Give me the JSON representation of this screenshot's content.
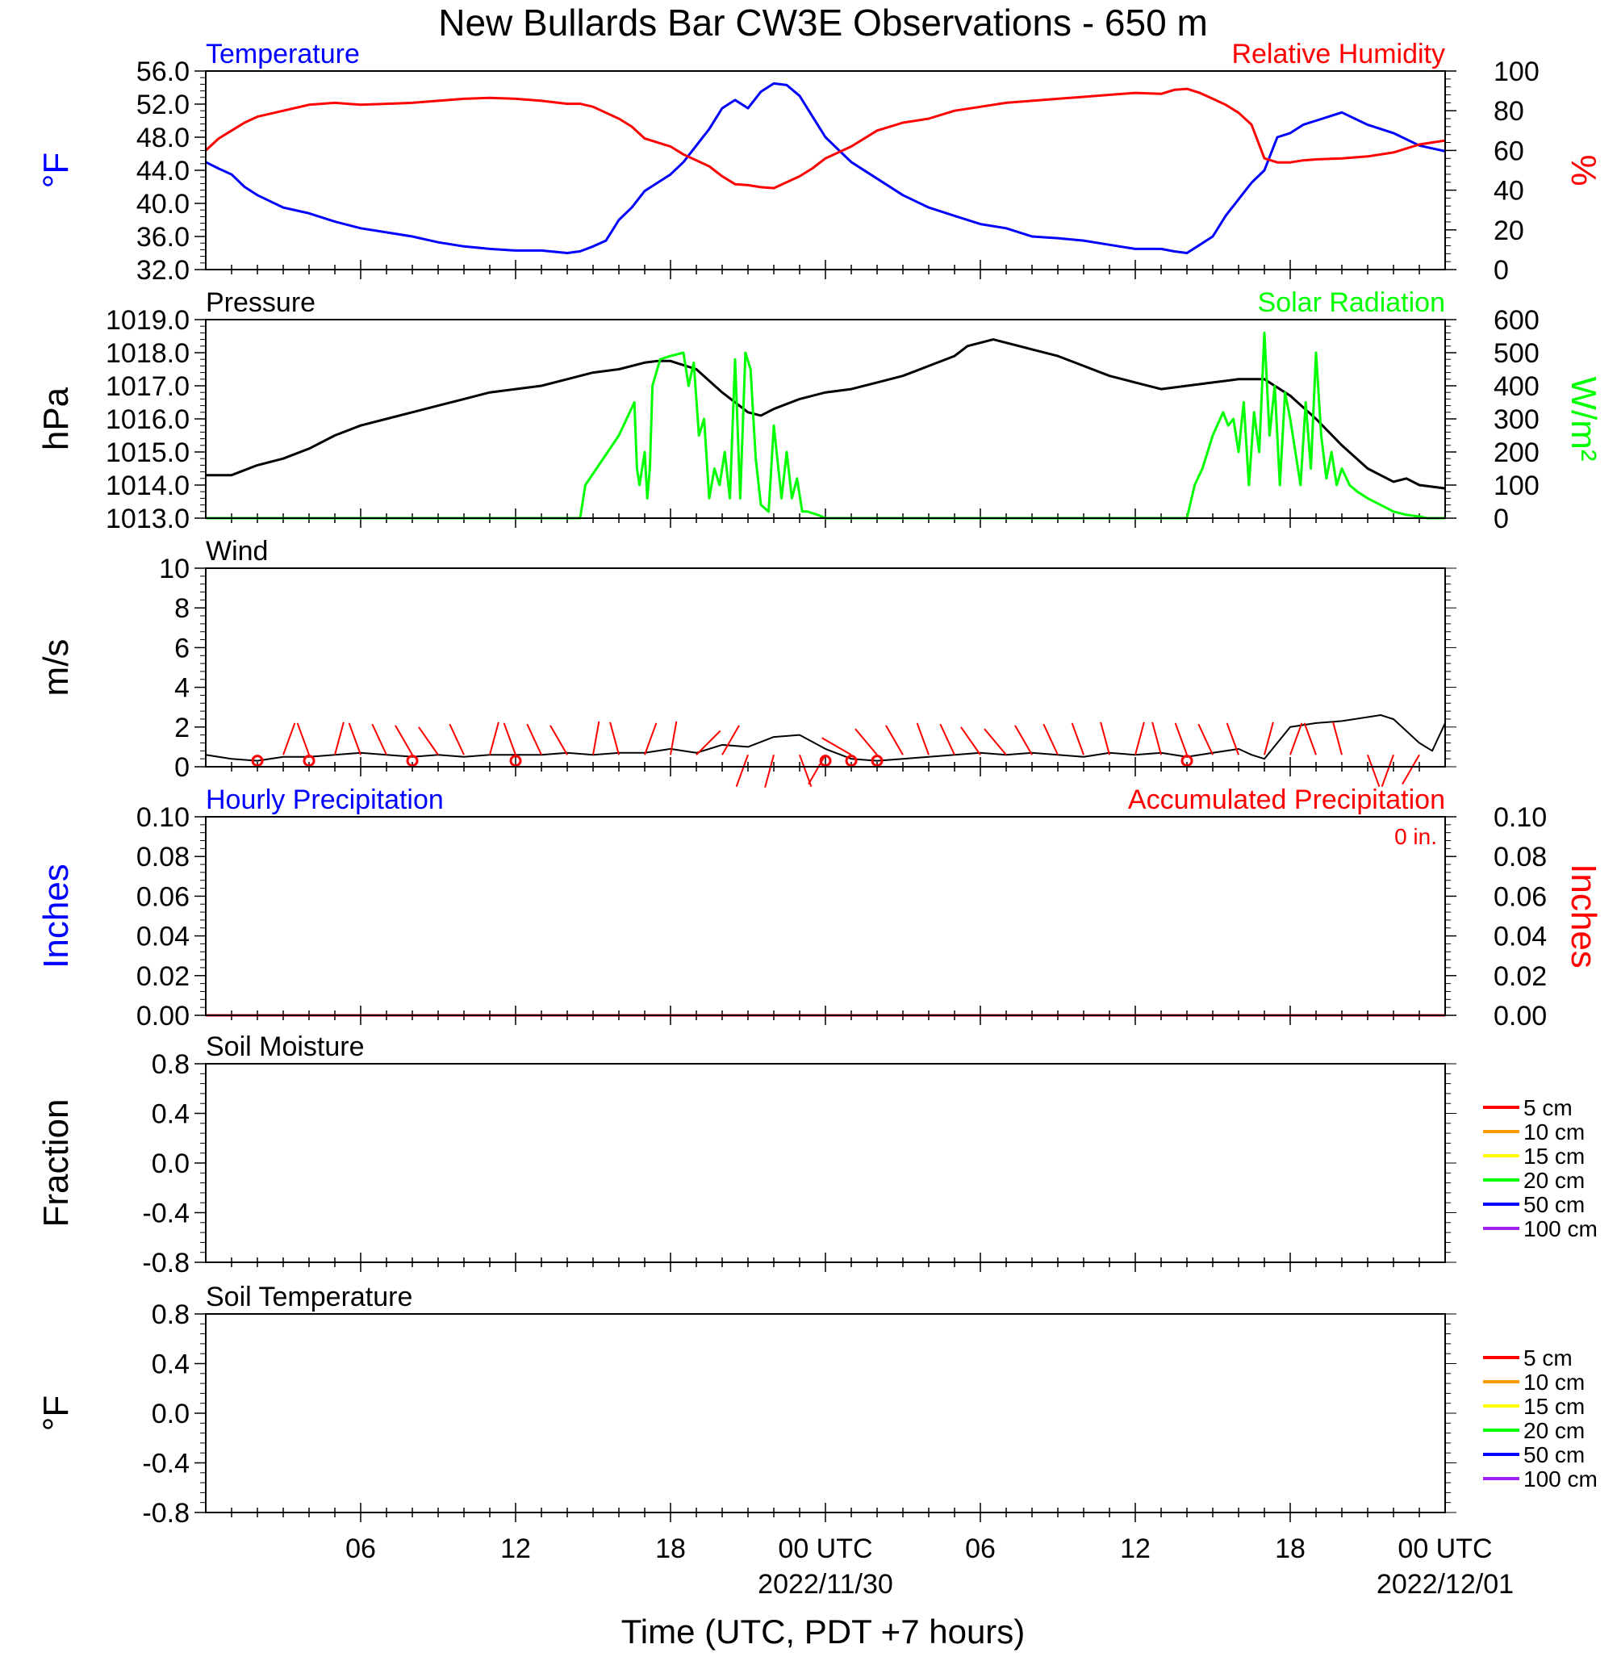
{
  "figure": {
    "title": "New Bullards Bar CW3E Observations - 650 m",
    "xlabel": "Time (UTC, PDT +7 hours)",
    "x_ticks": [
      "06",
      "12",
      "18",
      "00 UTC",
      "06",
      "12",
      "18",
      "00 UTC"
    ],
    "x_dates": [
      "2022/11/30",
      "2022/12/01"
    ]
  },
  "colors": {
    "temperature": "#0000ff",
    "humidity": "#ff0000",
    "pressure": "#000000",
    "solar": "#00ff00",
    "wind": "#000000",
    "wind_barb": "#ff0000",
    "precip_hourly": "#0000ff",
    "precip_accum": "#ff0000",
    "soil_5cm": "#ff0000",
    "soil_10cm": "#ff9900",
    "soil_15cm": "#ffff00",
    "soil_20cm": "#00ff00",
    "soil_50cm": "#0000ff",
    "soil_100cm": "#a020f0"
  },
  "chart_data": [
    {
      "type": "line",
      "panel": "temperature-humidity",
      "title_left": "Temperature",
      "title_right": "Relative Humidity",
      "ylabel_left": "°F",
      "ylabel_right": "%",
      "xlim_hours": [
        0,
        48
      ],
      "ylim_left": [
        32,
        56
      ],
      "ylim_right": [
        0,
        100
      ],
      "yticks_left": [
        "56.0",
        "52.0",
        "48.0",
        "44.0",
        "40.0",
        "36.0",
        "32.0"
      ],
      "yticks_right": [
        "100",
        "80",
        "60",
        "40",
        "20",
        "0"
      ],
      "series": [
        {
          "name": "Temperature",
          "axis": "left",
          "x": [
            0,
            0.5,
            1,
            1.5,
            2,
            3,
            4,
            5,
            6,
            7,
            8,
            9,
            10,
            11,
            12,
            13,
            14,
            14.5,
            15,
            15.5,
            16,
            16.5,
            17,
            17.5,
            18,
            18.5,
            19,
            19.5,
            20,
            20.5,
            21,
            21.5,
            22,
            22.5,
            23,
            23.5,
            24,
            24.5,
            25,
            26,
            27,
            28,
            29,
            30,
            31,
            32,
            33,
            34,
            35,
            36,
            37,
            37.5,
            38,
            38.5,
            39,
            39.5,
            40,
            40.5,
            41,
            41.5,
            42,
            42.5,
            43,
            44,
            45,
            46,
            47,
            48
          ],
          "y": [
            45.0,
            44.2,
            43.5,
            42.0,
            41.0,
            39.5,
            38.8,
            37.8,
            37.0,
            36.5,
            36.0,
            35.3,
            34.8,
            34.5,
            34.3,
            34.3,
            34.0,
            34.2,
            34.8,
            35.5,
            38.0,
            39.5,
            41.5,
            42.5,
            43.5,
            45.0,
            47.0,
            49.0,
            51.5,
            52.5,
            51.5,
            53.5,
            54.5,
            54.3,
            53.0,
            50.5,
            48.0,
            46.5,
            45.0,
            43.0,
            41.0,
            39.5,
            38.5,
            37.5,
            37.0,
            36.0,
            35.8,
            35.5,
            35.0,
            34.5,
            34.5,
            34.2,
            34.0,
            35.0,
            36.0,
            38.5,
            40.5,
            42.5,
            44.0,
            48.0,
            48.5,
            49.5,
            50.0,
            51.0,
            49.5,
            48.5,
            47.0,
            46.3
          ]
        },
        {
          "name": "Relative Humidity",
          "axis": "right",
          "x": [
            0,
            0.5,
            1,
            1.5,
            2,
            3,
            4,
            5,
            6,
            7,
            8,
            9,
            10,
            11,
            12,
            13,
            14,
            14.5,
            15,
            15.5,
            16,
            16.5,
            17,
            17.5,
            18,
            18.5,
            19,
            19.5,
            20,
            20.5,
            21,
            21.5,
            22,
            22.5,
            23,
            23.5,
            24,
            24.5,
            25,
            26,
            27,
            28,
            29,
            30,
            31,
            32,
            33,
            34,
            35,
            36,
            37,
            37.5,
            38,
            38.5,
            39,
            39.5,
            40,
            40.5,
            41,
            41.5,
            42,
            42.5,
            43,
            44,
            45,
            46,
            47,
            48
          ],
          "y": [
            60.0,
            66.0,
            70.0,
            74.0,
            77.0,
            80.0,
            83.0,
            84.0,
            83.0,
            83.5,
            84.0,
            85.0,
            86.0,
            86.5,
            86.0,
            85.0,
            83.5,
            83.5,
            82.0,
            79.0,
            76.0,
            72.0,
            66.0,
            64.0,
            62.0,
            58.0,
            55.0,
            52.0,
            47.0,
            43.0,
            42.5,
            41.5,
            41.0,
            44.0,
            47.0,
            51.0,
            56.0,
            59.0,
            62.0,
            70.0,
            74.0,
            76.0,
            80.0,
            82.0,
            84.0,
            85.0,
            86.0,
            87.0,
            88.0,
            89.0,
            88.5,
            90.5,
            91.0,
            89.0,
            86.0,
            83.0,
            79.0,
            73.0,
            56.0,
            54.0,
            54.0,
            55.0,
            55.5,
            56.0,
            57.0,
            59.0,
            63.0,
            65.0
          ]
        }
      ]
    },
    {
      "type": "line",
      "panel": "pressure-solar",
      "title_left": "Pressure",
      "title_right": "Solar Radiation",
      "ylabel_left": "hPa",
      "ylabel_right": "W/m²",
      "xlim_hours": [
        0,
        48
      ],
      "ylim_left": [
        1013,
        1019
      ],
      "ylim_right": [
        0,
        600
      ],
      "yticks_left": [
        "1019.0",
        "1018.0",
        "1017.0",
        "1016.0",
        "1015.0",
        "1014.0",
        "1013.0"
      ],
      "yticks_right": [
        "600",
        "500",
        "400",
        "300",
        "200",
        "100",
        "0"
      ],
      "series": [
        {
          "name": "Pressure",
          "axis": "left",
          "x": [
            0,
            1,
            2,
            3,
            4,
            5,
            6,
            7,
            8,
            9,
            10,
            11,
            12,
            13,
            14,
            15,
            16,
            17,
            17.5,
            18,
            19,
            20,
            21,
            21.5,
            22,
            23,
            24,
            25,
            26,
            27,
            28,
            29,
            29.5,
            30,
            30.5,
            31,
            32,
            33,
            34,
            35,
            36,
            37,
            38,
            39,
            40,
            41,
            42,
            43,
            44,
            45,
            46,
            46.5,
            47,
            48
          ],
          "y": [
            1014.3,
            1014.3,
            1014.6,
            1014.8,
            1015.1,
            1015.5,
            1015.8,
            1016.0,
            1016.2,
            1016.4,
            1016.6,
            1016.8,
            1016.9,
            1017.0,
            1017.2,
            1017.4,
            1017.5,
            1017.7,
            1017.75,
            1017.75,
            1017.5,
            1016.8,
            1016.2,
            1016.1,
            1016.3,
            1016.6,
            1016.8,
            1016.9,
            1017.1,
            1017.3,
            1017.6,
            1017.9,
            1018.2,
            1018.3,
            1018.4,
            1018.3,
            1018.1,
            1017.9,
            1017.6,
            1017.3,
            1017.1,
            1016.9,
            1017.0,
            1017.1,
            1017.2,
            1017.2,
            1016.7,
            1016.0,
            1015.2,
            1014.5,
            1014.1,
            1014.2,
            1014.0,
            1013.9
          ]
        },
        {
          "name": "Solar Radiation",
          "axis": "right",
          "x": [
            0,
            14.5,
            14.7,
            16.0,
            16.6,
            16.7,
            16.8,
            17.0,
            17.1,
            17.2,
            17.3,
            17.6,
            18.0,
            18.5,
            18.7,
            18.9,
            19.1,
            19.3,
            19.5,
            19.7,
            19.9,
            20.1,
            20.3,
            20.5,
            20.7,
            20.9,
            21.1,
            21.3,
            21.5,
            21.8,
            22.0,
            22.3,
            22.5,
            22.7,
            22.9,
            23.1,
            23.3,
            23.7,
            24.0,
            24.5,
            25.0,
            38.0,
            38.3,
            38.6,
            39.0,
            39.4,
            39.6,
            39.8,
            40.0,
            40.2,
            40.4,
            40.6,
            40.8,
            41.0,
            41.2,
            41.4,
            41.6,
            41.8,
            42.0,
            42.2,
            42.4,
            42.6,
            42.8,
            43.0,
            43.2,
            43.4,
            43.6,
            43.8,
            44.0,
            44.3,
            44.6,
            45.0,
            45.5,
            46.0,
            46.5,
            47.0,
            47.3,
            48.0
          ],
          "y": [
            0,
            0,
            100,
            250,
            350,
            150,
            100,
            200,
            60,
            150,
            400,
            480,
            490,
            500,
            400,
            470,
            250,
            300,
            60,
            150,
            100,
            200,
            60,
            480,
            60,
            500,
            450,
            180,
            40,
            20,
            280,
            60,
            200,
            60,
            120,
            20,
            20,
            10,
            0,
            0,
            0,
            0,
            100,
            150,
            250,
            320,
            280,
            300,
            200,
            350,
            100,
            320,
            200,
            560,
            250,
            400,
            100,
            380,
            300,
            200,
            100,
            350,
            150,
            500,
            250,
            120,
            200,
            100,
            150,
            100,
            80,
            60,
            40,
            20,
            10,
            5,
            0,
            0
          ]
        }
      ]
    },
    {
      "type": "line",
      "panel": "wind",
      "title_left": "Wind",
      "ylabel_left": "m/s",
      "xlim_hours": [
        0,
        48
      ],
      "ylim_left": [
        0,
        10
      ],
      "yticks_left": [
        "10",
        "8",
        "6",
        "4",
        "2",
        "0"
      ],
      "series": [
        {
          "name": "Wind",
          "axis": "left",
          "x": [
            0,
            1,
            2,
            3,
            4,
            5,
            6,
            7,
            8,
            9,
            10,
            11,
            12,
            13,
            14,
            15,
            16,
            17,
            18,
            19,
            20,
            21,
            22,
            23,
            24,
            25,
            26,
            27,
            28,
            29,
            30,
            31,
            32,
            33,
            34,
            35,
            36,
            37,
            38,
            39,
            40,
            40.5,
            41,
            42,
            43,
            44,
            45,
            45.5,
            46,
            47,
            47.5,
            48
          ],
          "y": [
            0.6,
            0.4,
            0.3,
            0.5,
            0.5,
            0.6,
            0.7,
            0.6,
            0.5,
            0.6,
            0.5,
            0.6,
            0.6,
            0.6,
            0.7,
            0.6,
            0.7,
            0.7,
            0.9,
            0.7,
            1.1,
            1.0,
            1.5,
            1.6,
            0.9,
            0.4,
            0.3,
            0.4,
            0.5,
            0.6,
            0.7,
            0.6,
            0.7,
            0.6,
            0.5,
            0.7,
            0.6,
            0.7,
            0.5,
            0.7,
            0.9,
            0.6,
            0.4,
            2.0,
            2.2,
            2.3,
            2.5,
            2.6,
            2.4,
            1.2,
            0.8,
            2.2
          ]
        }
      ],
      "barbs": {
        "name": "wind direction",
        "x": [
          3,
          4,
          5,
          6,
          7,
          8,
          9,
          10,
          11,
          12,
          13,
          14,
          15,
          16,
          17,
          18,
          19,
          20,
          21,
          22,
          23,
          24,
          25,
          26,
          27,
          28,
          29,
          30,
          31,
          32,
          33,
          34,
          35,
          36,
          37,
          38,
          39,
          40,
          41,
          42,
          43,
          44,
          45,
          46,
          47
        ],
        "calm_x": [
          2,
          4,
          8,
          12,
          24,
          25,
          26,
          38
        ]
      }
    },
    {
      "type": "line",
      "panel": "precipitation",
      "title_left": "Hourly Precipitation",
      "title_right": "Accumulated Precipitation",
      "annotation": "0 in.",
      "ylabel_left": "Inches",
      "ylabel_right": "Inches",
      "xlim_hours": [
        0,
        48
      ],
      "ylim_left": [
        0,
        0.1
      ],
      "ylim_right": [
        0,
        0.1
      ],
      "yticks_left": [
        "0.10",
        "0.08",
        "0.06",
        "0.04",
        "0.02",
        "0.00"
      ],
      "yticks_right": [
        "0.10",
        "0.08",
        "0.06",
        "0.04",
        "0.02",
        "0.00"
      ],
      "series": [
        {
          "name": "Hourly Precipitation",
          "axis": "left",
          "x": [
            0,
            48
          ],
          "y": [
            0,
            0
          ]
        },
        {
          "name": "Accumulated Precipitation",
          "axis": "right",
          "x": [
            0,
            48
          ],
          "y": [
            0,
            0
          ]
        }
      ]
    },
    {
      "type": "line",
      "panel": "soil-moisture",
      "title_left": "Soil Moisture",
      "ylabel_left": "Fraction",
      "xlim_hours": [
        0,
        48
      ],
      "ylim_left": [
        -1,
        1
      ],
      "yticks_left": [
        "0.8",
        "0.4",
        "0.0",
        "-0.4",
        "-0.8"
      ],
      "legend": [
        "5 cm",
        "10 cm",
        "15 cm",
        "20 cm",
        "50 cm",
        "100 cm"
      ],
      "series": []
    },
    {
      "type": "line",
      "panel": "soil-temperature",
      "title_left": "Soil Temperature",
      "ylabel_left": "°F",
      "xlim_hours": [
        0,
        48
      ],
      "ylim_left": [
        -1,
        1
      ],
      "yticks_left": [
        "0.8",
        "0.4",
        "0.0",
        "-0.4",
        "-0.8"
      ],
      "legend": [
        "5 cm",
        "10 cm",
        "15 cm",
        "20 cm",
        "50 cm",
        "100 cm"
      ],
      "series": []
    }
  ]
}
